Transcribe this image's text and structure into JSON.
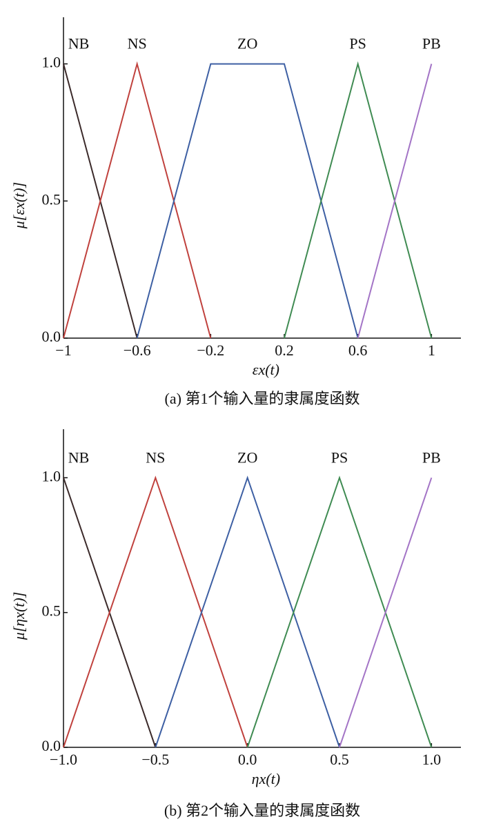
{
  "chart_data": [
    {
      "type": "line",
      "title": "(a) 第1个输入量的隶属度函数",
      "xlabel": "εx(t)",
      "ylabel": "μ[εx(t)]",
      "xlim": [
        -1,
        1.16
      ],
      "ylim": [
        0,
        1.17
      ],
      "xticks": [
        {
          "value": -1,
          "label": "−1"
        },
        {
          "value": -0.6,
          "label": "−0.6"
        },
        {
          "value": -0.2,
          "label": "−0.2"
        },
        0.2,
        0.6,
        1
      ],
      "yticks": [
        {
          "value": 0,
          "label": "0.0"
        },
        0.5,
        {
          "value": 1,
          "label": "1.0"
        }
      ],
      "series": [
        {
          "name": "NB",
          "color": "#3b2a2a",
          "x": [
            -1,
            -0.6
          ],
          "values": [
            1,
            0
          ]
        },
        {
          "name": "NS",
          "color": "#c0413d",
          "x": [
            -1,
            -0.6,
            -0.2
          ],
          "values": [
            0,
            1,
            0
          ]
        },
        {
          "name": "ZO",
          "color": "#3d5fa3",
          "x": [
            -0.6,
            -0.2,
            0.2,
            0.6
          ],
          "values": [
            0,
            1,
            1,
            0
          ]
        },
        {
          "name": "PS",
          "color": "#3f8b52",
          "x": [
            0.2,
            0.6,
            1
          ],
          "values": [
            0,
            1,
            0
          ]
        },
        {
          "name": "PB",
          "color": "#a374c6",
          "x": [
            0.6,
            1
          ],
          "values": [
            0,
            1
          ]
        }
      ]
    },
    {
      "type": "line",
      "title": "(b) 第2个输入量的隶属度函数",
      "xlabel": "ηx(t)",
      "ylabel": "μ[ηx(t)]",
      "xlim": [
        -1,
        1.16
      ],
      "ylim": [
        0,
        1.18
      ],
      "xticks": [
        {
          "value": -1,
          "label": "−1.0"
        },
        {
          "value": -0.5,
          "label": "−0.5"
        },
        {
          "value": 0,
          "label": "0.0"
        },
        0.5,
        {
          "value": 1,
          "label": "1.0"
        }
      ],
      "yticks": [
        {
          "value": 0,
          "label": "0.0"
        },
        0.5,
        {
          "value": 1,
          "label": "1.0"
        }
      ],
      "series": [
        {
          "name": "NB",
          "color": "#3b2a2a",
          "x": [
            -1,
            -0.5
          ],
          "values": [
            1,
            0
          ]
        },
        {
          "name": "NS",
          "color": "#c0413d",
          "x": [
            -1,
            -0.5,
            0
          ],
          "values": [
            0,
            1,
            0
          ]
        },
        {
          "name": "ZO",
          "color": "#3d5fa3",
          "x": [
            -0.5,
            0,
            0.5
          ],
          "values": [
            0,
            1,
            0
          ]
        },
        {
          "name": "PS",
          "color": "#3f8b52",
          "x": [
            0,
            0.5,
            1
          ],
          "values": [
            0,
            1,
            0
          ]
        },
        {
          "name": "PB",
          "color": "#a374c6",
          "x": [
            0.5,
            1
          ],
          "values": [
            0,
            1
          ]
        }
      ]
    }
  ]
}
